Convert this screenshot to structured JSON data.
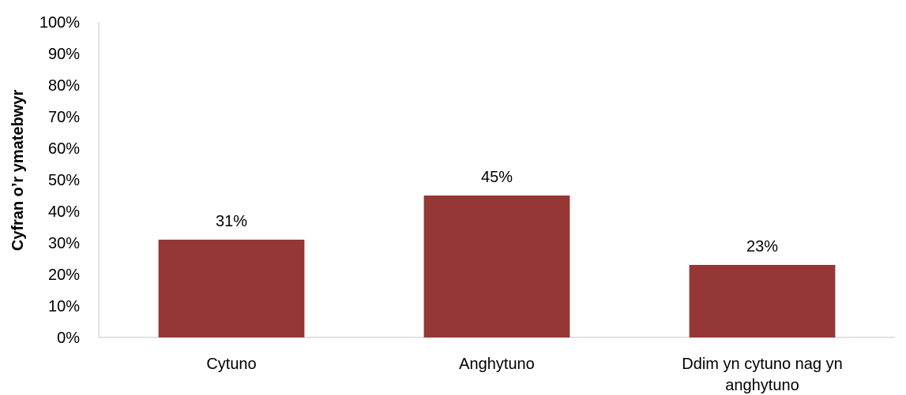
{
  "colors": {
    "bar": "#953735",
    "axis": "#d9d9d9",
    "text": "#000000"
  },
  "chart_data": {
    "type": "bar",
    "categories": [
      "Cytuno",
      "Anghytuno",
      "Ddim yn cytuno nag yn anghytuno"
    ],
    "values": [
      31,
      45,
      23
    ],
    "data_labels": [
      "31%",
      "45%",
      "23%"
    ],
    "ylabel": "Cyfran o’r ymatebwyr",
    "xlabel": "",
    "ylim": [
      0,
      100
    ],
    "y_ticks": [
      "0%",
      "10%",
      "20%",
      "30%",
      "40%",
      "50%",
      "60%",
      "70%",
      "80%",
      "90%",
      "100%"
    ],
    "grid": false,
    "legend": "none"
  }
}
